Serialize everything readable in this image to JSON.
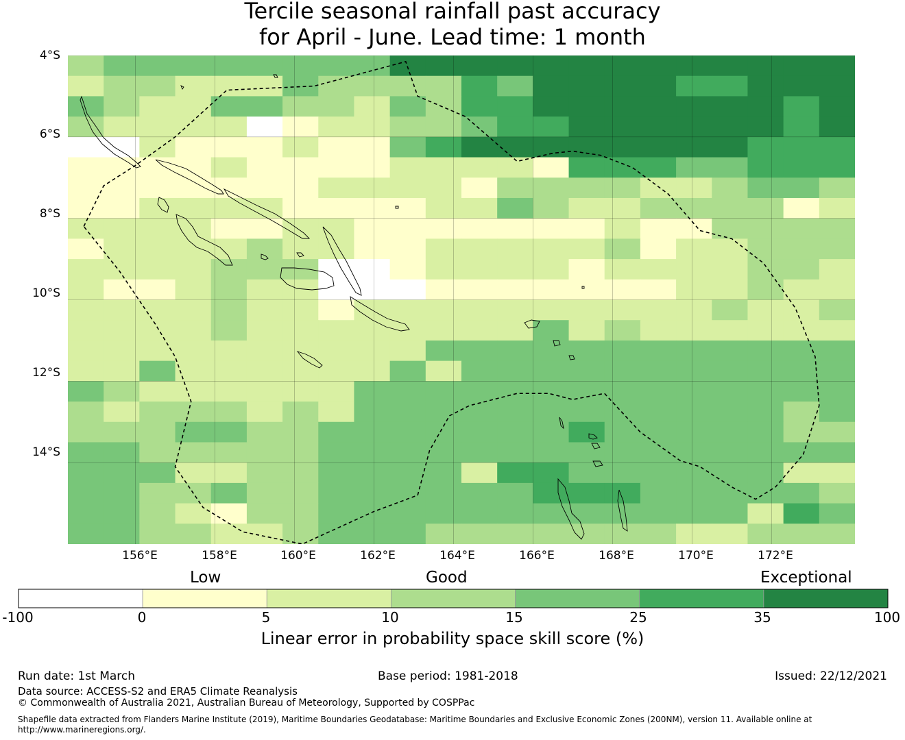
{
  "title": {
    "line1": "Tercile seasonal rainfall past accuracy",
    "line2": "for April - June. Lead time: 1 month"
  },
  "map": {
    "lat_range": [
      -16.0,
      -4.0
    ],
    "lon_range": [
      154.3,
      174.1
    ],
    "lat_ticks": [
      {
        "value": -4,
        "label": "4°S"
      },
      {
        "value": -6,
        "label": "6°S"
      },
      {
        "value": -8,
        "label": "8°S"
      },
      {
        "value": -10,
        "label": "10°S"
      },
      {
        "value": -12,
        "label": "12°S"
      },
      {
        "value": -14,
        "label": "14°S"
      }
    ],
    "lon_ticks": [
      {
        "value": 156,
        "label": "156°E"
      },
      {
        "value": 158,
        "label": "158°E"
      },
      {
        "value": 160,
        "label": "160°E"
      },
      {
        "value": 162,
        "label": "162°E"
      },
      {
        "value": 164,
        "label": "164°E"
      },
      {
        "value": 166,
        "label": "166°E"
      },
      {
        "value": 168,
        "label": "168°E"
      },
      {
        "value": 170,
        "label": "170°E"
      },
      {
        "value": 172,
        "label": "172°E"
      }
    ],
    "grid_rows": [
      "3444444446666666666666",
      "2332224333354666655666",
      "4322443324355666666656",
      "3222201223345566666656",
      "0021112114566666666555",
      "1111211112222155544555",
      "1111111222213333223443",
      "1122221111224322333312",
      "2222112211111112113333",
      "1222232211222223122333",
      "2222333001222212222332",
      "2112322000111111122322",
      "2222322122222222223223",
      "2222322222222423222222",
      "2222222222444444444444",
      "2242222224244444444444",
      "4322222244444444444444",
      "3233323244444444444434",
      "3334433444444454444433",
      "4433333444444444444444",
      "4442233444425544444422",
      "4433433444444555444443",
      "4432133444444444444254",
      "4433223444333333322333"
    ],
    "eez_boundary": [
      [
        154.7,
        -8.2
      ],
      [
        155.2,
        -7.2
      ],
      [
        156.0,
        -6.7
      ],
      [
        157.0,
        -6.0
      ],
      [
        158.3,
        -4.85
      ],
      [
        160.5,
        -4.75
      ],
      [
        162.8,
        -4.15
      ],
      [
        163.1,
        -5.0
      ],
      [
        164.3,
        -5.5
      ],
      [
        165.6,
        -6.6
      ],
      [
        166.5,
        -6.4
      ],
      [
        167.0,
        -6.35
      ],
      [
        167.7,
        -6.45
      ],
      [
        168.5,
        -6.75
      ],
      [
        169.4,
        -7.4
      ],
      [
        170.2,
        -8.3
      ],
      [
        171.0,
        -8.5
      ],
      [
        171.8,
        -9.1
      ],
      [
        172.6,
        -10.2
      ],
      [
        173.1,
        -11.4
      ],
      [
        173.2,
        -12.6
      ],
      [
        172.8,
        -13.8
      ],
      [
        172.1,
        -14.6
      ],
      [
        171.6,
        -14.9
      ],
      [
        171.0,
        -14.6
      ],
      [
        170.2,
        -14.1
      ],
      [
        169.7,
        -13.95
      ],
      [
        168.7,
        -13.25
      ],
      [
        167.8,
        -12.3
      ],
      [
        167.0,
        -12.45
      ],
      [
        166.4,
        -12.3
      ],
      [
        165.6,
        -12.3
      ],
      [
        164.4,
        -12.6
      ],
      [
        163.9,
        -12.85
      ],
      [
        163.4,
        -13.7
      ],
      [
        163.1,
        -14.8
      ],
      [
        162.0,
        -15.2
      ],
      [
        160.2,
        -16.0
      ],
      [
        158.7,
        -15.7
      ],
      [
        157.7,
        -15.1
      ],
      [
        157.0,
        -14.1
      ],
      [
        157.4,
        -12.5
      ],
      [
        157.0,
        -11.4
      ],
      [
        156.5,
        -10.6
      ],
      [
        155.6,
        -9.3
      ],
      [
        154.7,
        -8.2
      ]
    ],
    "colors": [
      "#ffffff",
      "#ffffcc",
      "#d9f0a3",
      "#addd8e",
      "#78c679",
      "#41ab5d",
      "#238443"
    ]
  },
  "legend": {
    "categories": [
      {
        "label": "Low",
        "center_value": 2.5
      },
      {
        "label": "Good",
        "center_value": 12.5
      },
      {
        "label": "Exceptional",
        "center_value": 50
      }
    ],
    "bins": [
      {
        "from": -100,
        "to": 0,
        "color": "#ffffff"
      },
      {
        "from": 0,
        "to": 5,
        "color": "#ffffcc"
      },
      {
        "from": 5,
        "to": 10,
        "color": "#d9f0a3"
      },
      {
        "from": 10,
        "to": 15,
        "color": "#addd8e"
      },
      {
        "from": 15,
        "to": 25,
        "color": "#78c679"
      },
      {
        "from": 25,
        "to": 35,
        "color": "#41ab5d"
      },
      {
        "from": 35,
        "to": 100,
        "color": "#238443"
      }
    ],
    "tick_labels": [
      "-100",
      "0",
      "5",
      "10",
      "15",
      "25",
      "35",
      "100"
    ],
    "axis_label": "Linear error in probability space skill score (%)"
  },
  "footer": {
    "run_date": "Run date: 1st March",
    "base_period": "Base period: 1981-2018",
    "issued": "Issued: 22/12/2021",
    "data_source": "Data source: ACCESS-S2 and ERA5 Climate Reanalysis",
    "copyright": "© Commonwealth of Australia 2021, Australian Bureau of Meteorology, Supported by COSPPac",
    "shapefile_line1": "Shapefile data extracted from Flanders Marine Institute (2019), Maritime Boundaries Geodatabase: Maritime Boundaries and Exclusive Economic Zones (200NM), version 11. Available online at",
    "shapefile_line2": "http://www.marineregions.org/."
  }
}
